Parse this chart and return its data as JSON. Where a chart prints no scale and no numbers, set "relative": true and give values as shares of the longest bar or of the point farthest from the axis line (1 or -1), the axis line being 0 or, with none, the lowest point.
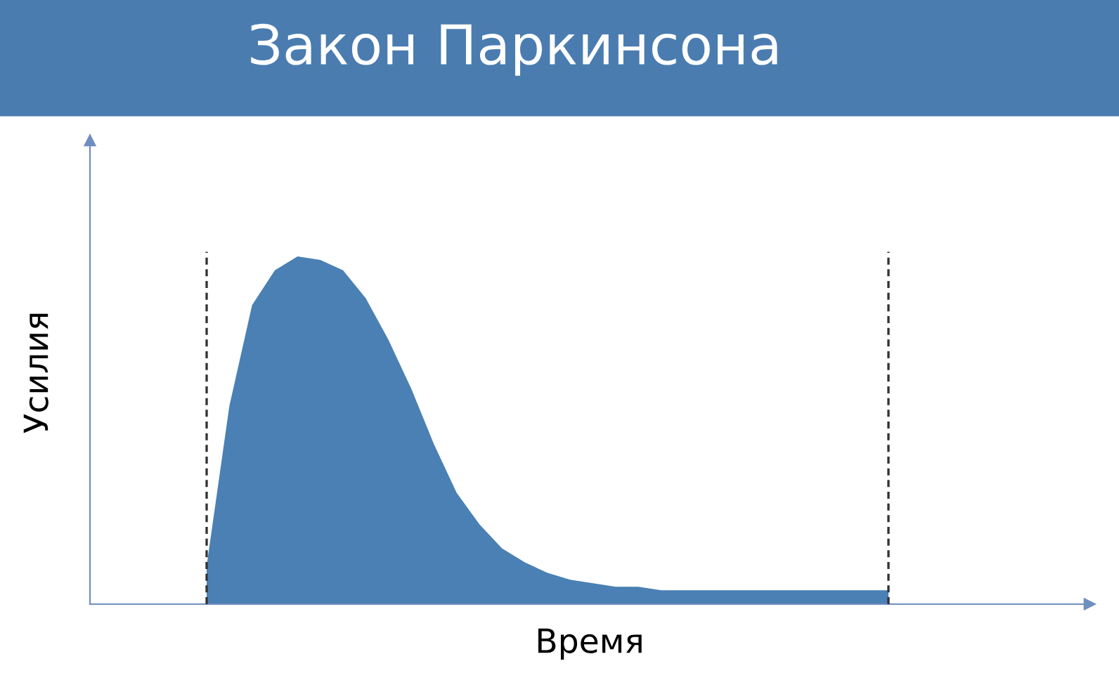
{
  "chart_data": {
    "type": "area",
    "title": "Закон Паркинсона",
    "xlabel": "Время",
    "ylabel": "Усилия",
    "relative": true,
    "categories": [
      null,
      null,
      null,
      null,
      null,
      null,
      null,
      null,
      null,
      null,
      null,
      null,
      null,
      null,
      null,
      null,
      null,
      null,
      null,
      null,
      null,
      null,
      null,
      null,
      null,
      null,
      null,
      null,
      null,
      null,
      null
    ],
    "series": [
      {
        "color": "#4a80b4",
        "values": [
          0.11,
          0.57,
          0.86,
          0.96,
          1.0,
          0.99,
          0.96,
          0.88,
          0.76,
          0.62,
          0.46,
          0.32,
          0.23,
          0.16,
          0.12,
          0.09,
          0.07,
          0.06,
          0.05,
          0.05,
          0.04,
          0.04,
          0.04,
          0.04,
          0.04,
          0.04,
          0.04,
          0.04,
          0.04,
          0.04,
          0.04
        ]
      }
    ],
    "tick_labels": false,
    "grid": false,
    "legend": false
  }
}
